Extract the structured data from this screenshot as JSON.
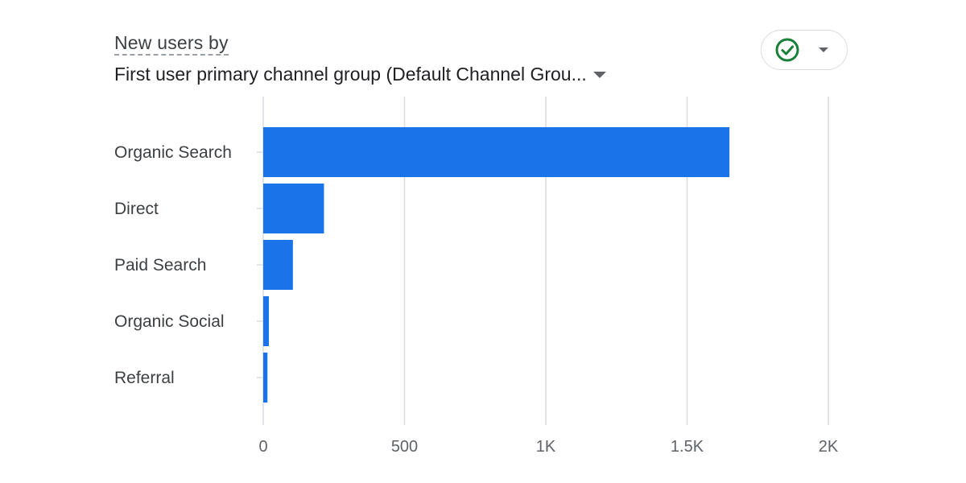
{
  "header": {
    "title_prefix": "New users by",
    "dimension_label": "First user primary channel group (Default Channel Grou..."
  },
  "icons": {
    "compare": "check-circle-icon",
    "dropdown": "arrow-drop-down-icon"
  },
  "colors": {
    "bar": "#1a73e8",
    "check": "#188038",
    "grid": "#dadce0"
  },
  "chart_data": {
    "type": "bar",
    "orientation": "horizontal",
    "categories": [
      "Organic Search",
      "Direct",
      "Paid Search",
      "Organic Social",
      "Referral"
    ],
    "values": [
      1650,
      215,
      105,
      20,
      15
    ],
    "xlim": [
      0,
      2000
    ],
    "xticks": [
      0,
      500,
      1000,
      1500,
      2000
    ],
    "xtick_labels": [
      "0",
      "500",
      "1K",
      "1.5K",
      "2K"
    ],
    "grid": true
  }
}
